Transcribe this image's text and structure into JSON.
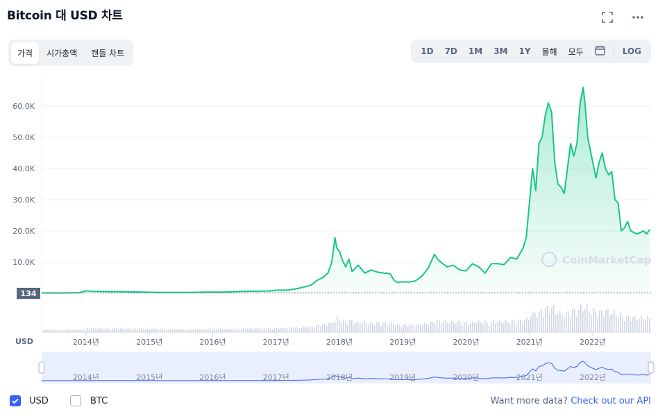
{
  "title": "Bitcoin 대 USD 차트",
  "icons": {
    "fullscreen": "fullscreen-icon",
    "more": "more-icon",
    "calendar": "calendar-icon",
    "check": "check-icon"
  },
  "tabs": [
    {
      "label": "가격",
      "active": true
    },
    {
      "label": "시가총액",
      "active": false
    },
    {
      "label": "캔들 차트",
      "active": false
    }
  ],
  "ranges": [
    "1D",
    "7D",
    "1M",
    "3M",
    "1Y",
    "올해",
    "모두"
  ],
  "log_label": "LOG",
  "currency_label": "USD",
  "watermark": "CoinMarketCap",
  "colors": {
    "line": "#16c784",
    "accent": "#3861fb",
    "grid": "#eff2f5",
    "text": "#58667e",
    "volume": "#cfd6e4"
  },
  "chart_data": {
    "type": "line",
    "series": [
      {
        "x": [
          2013.3,
          2013.6,
          2013.9,
          2014.0,
          2014.1,
          2014.3,
          2014.6,
          2014.9,
          2015.2,
          2015.6,
          2015.9,
          2016.2,
          2016.5,
          2016.9,
          2017.0,
          2017.2,
          2017.4,
          2017.55,
          2017.65,
          2017.75,
          2017.82,
          2017.88,
          2017.93,
          2017.96,
          2018.0,
          2018.05,
          2018.1,
          2018.15,
          2018.2,
          2018.3,
          2018.4,
          2018.5,
          2018.6,
          2018.7,
          2018.8,
          2018.87,
          2018.92,
          2019.0,
          2019.1,
          2019.2,
          2019.3,
          2019.4,
          2019.5,
          2019.55,
          2019.6,
          2019.7,
          2019.8,
          2019.9,
          2020.0,
          2020.1,
          2020.2,
          2020.3,
          2020.4,
          2020.5,
          2020.6,
          2020.7,
          2020.8,
          2020.9,
          2020.95,
          2021.0,
          2021.05,
          2021.1,
          2021.15,
          2021.2,
          2021.25,
          2021.3,
          2021.35,
          2021.4,
          2021.45,
          2021.5,
          2021.55,
          2021.6,
          2021.65,
          2021.7,
          2021.75,
          2021.8,
          2021.85,
          2021.88,
          2021.92,
          2021.95,
          2022.0,
          2022.05,
          2022.1,
          2022.15,
          2022.2,
          2022.25,
          2022.3,
          2022.35,
          2022.4,
          2022.45,
          2022.5,
          2022.55,
          2022.6,
          2022.65,
          2022.7,
          2022.75,
          2022.8,
          2022.85,
          2022.9
        ],
        "y": [
          134,
          120,
          200,
          800,
          650,
          550,
          500,
          400,
          280,
          260,
          380,
          420,
          650,
          750,
          1000,
          1050,
          1800,
          2600,
          4200,
          5200,
          6500,
          10000,
          17800,
          14500,
          13500,
          10500,
          8500,
          11000,
          7000,
          9000,
          6500,
          7500,
          6800,
          6500,
          6300,
          4000,
          3500,
          3700,
          3600,
          4000,
          5500,
          8000,
          12500,
          11000,
          10000,
          8500,
          9000,
          7500,
          7200,
          9500,
          8500,
          6500,
          9500,
          9500,
          9200,
          11500,
          11000,
          14500,
          18000,
          29000,
          40000,
          33000,
          48000,
          50000,
          57000,
          61000,
          58000,
          42000,
          35000,
          34000,
          32000,
          40000,
          48000,
          44000,
          48000,
          61000,
          66000,
          60000,
          50000,
          47000,
          42000,
          37000,
          42000,
          45000,
          40000,
          38000,
          39000,
          30000,
          29000,
          20000,
          21000,
          23000,
          20000,
          19500,
          19000,
          19500,
          20000,
          19000,
          20500
        ],
        "baseline": 134
      }
    ],
    "yticks": [
      "10.0K",
      "20.0K",
      "30.0K",
      "40.0K",
      "50.0K",
      "60.0K"
    ],
    "ytick_values": [
      10000,
      20000,
      30000,
      40000,
      50000,
      60000
    ],
    "xticks": [
      "2014년",
      "2015년",
      "2016년",
      "2017년",
      "2018년",
      "2019년",
      "2020년",
      "2021년",
      "2022년"
    ],
    "xtick_values": [
      2014,
      2015,
      2016,
      2017,
      2018,
      2019,
      2020,
      2021,
      2022
    ],
    "xlim": [
      2013.3,
      2022.92
    ],
    "ylim": [
      0,
      70000
    ],
    "baseline_label": "134",
    "series_options": [
      {
        "label": "USD",
        "checked": true
      },
      {
        "label": "BTC",
        "checked": false
      }
    ]
  },
  "footer": {
    "text": "Want more data?",
    "link": "Check out our API"
  }
}
